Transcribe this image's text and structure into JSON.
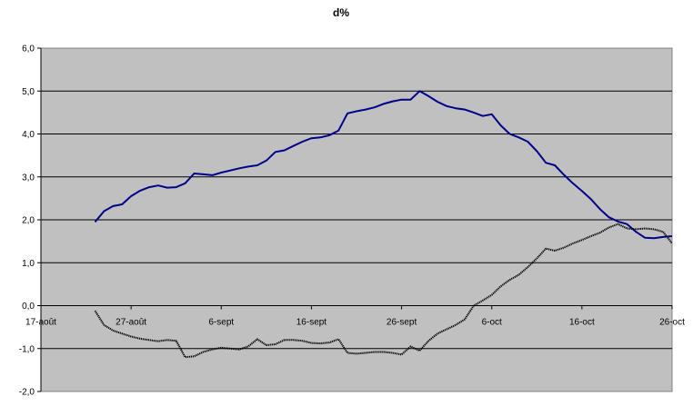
{
  "chart_data": {
    "type": "line",
    "title": "d%",
    "xlabel": "",
    "ylabel": "",
    "x_tick_labels": [
      "17-août",
      "27-août",
      "6-sept",
      "16-sept",
      "26-sept",
      "6-oct",
      "16-oct",
      "26-oct"
    ],
    "x_range_days": [
      0,
      70
    ],
    "y_tick_labels": [
      "-2,0",
      "-1,0",
      "0,0",
      "1,0",
      "2,0",
      "3,0",
      "4,0",
      "5,0",
      "6,0"
    ],
    "ylim": [
      -2.0,
      6.0
    ],
    "grid": "horizontal",
    "plot_background": "#c0c0c0",
    "legend": "none",
    "series": [
      {
        "color": "#00008b",
        "style": "solid",
        "points": [
          [
            6.0,
            1.95
          ],
          [
            7.0,
            2.2
          ],
          [
            8.0,
            2.32
          ],
          [
            9.0,
            2.36
          ],
          [
            10.0,
            2.55
          ],
          [
            11.0,
            2.68
          ],
          [
            12.0,
            2.76
          ],
          [
            13.0,
            2.8
          ],
          [
            14.0,
            2.75
          ],
          [
            15.0,
            2.76
          ],
          [
            16.0,
            2.85
          ],
          [
            17.0,
            3.08
          ],
          [
            18.0,
            3.06
          ],
          [
            19.0,
            3.04
          ],
          [
            20.0,
            3.1
          ],
          [
            21.0,
            3.15
          ],
          [
            22.0,
            3.2
          ],
          [
            23.0,
            3.24
          ],
          [
            24.0,
            3.27
          ],
          [
            25.0,
            3.38
          ],
          [
            26.0,
            3.58
          ],
          [
            27.0,
            3.62
          ],
          [
            28.0,
            3.72
          ],
          [
            29.0,
            3.82
          ],
          [
            30.0,
            3.9
          ],
          [
            31.0,
            3.92
          ],
          [
            32.0,
            3.97
          ],
          [
            33.0,
            4.08
          ],
          [
            34.0,
            4.48
          ],
          [
            35.0,
            4.53
          ],
          [
            36.0,
            4.57
          ],
          [
            37.0,
            4.62
          ],
          [
            38.0,
            4.7
          ],
          [
            39.0,
            4.76
          ],
          [
            40.0,
            4.8
          ],
          [
            41.0,
            4.8
          ],
          [
            42.0,
            5.0
          ],
          [
            43.0,
            4.88
          ],
          [
            44.0,
            4.75
          ],
          [
            45.0,
            4.65
          ],
          [
            46.0,
            4.6
          ],
          [
            47.0,
            4.57
          ],
          [
            48.0,
            4.5
          ],
          [
            49.0,
            4.42
          ],
          [
            50.0,
            4.46
          ],
          [
            51.0,
            4.2
          ],
          [
            52.0,
            4.0
          ],
          [
            53.0,
            3.92
          ],
          [
            54.0,
            3.82
          ],
          [
            55.0,
            3.6
          ],
          [
            56.0,
            3.33
          ],
          [
            57.0,
            3.27
          ],
          [
            58.0,
            3.05
          ],
          [
            59.0,
            2.85
          ],
          [
            60.0,
            2.67
          ],
          [
            61.0,
            2.48
          ],
          [
            62.0,
            2.25
          ],
          [
            63.0,
            2.06
          ],
          [
            64.0,
            1.96
          ],
          [
            65.0,
            1.9
          ],
          [
            66.0,
            1.72
          ],
          [
            67.0,
            1.58
          ],
          [
            68.0,
            1.57
          ],
          [
            69.0,
            1.6
          ],
          [
            70.0,
            1.62
          ]
        ]
      },
      {
        "color": "#000000",
        "style": "dotted",
        "points": [
          [
            6.0,
            -0.12
          ],
          [
            7.0,
            -0.45
          ],
          [
            8.0,
            -0.58
          ],
          [
            9.0,
            -0.65
          ],
          [
            10.0,
            -0.72
          ],
          [
            11.0,
            -0.77
          ],
          [
            12.0,
            -0.8
          ],
          [
            13.0,
            -0.83
          ],
          [
            14.0,
            -0.8
          ],
          [
            15.0,
            -0.82
          ],
          [
            16.0,
            -1.2
          ],
          [
            17.0,
            -1.18
          ],
          [
            18.0,
            -1.08
          ],
          [
            19.0,
            -1.02
          ],
          [
            20.0,
            -0.98
          ],
          [
            21.0,
            -1.0
          ],
          [
            22.0,
            -1.02
          ],
          [
            23.0,
            -0.95
          ],
          [
            24.0,
            -0.78
          ],
          [
            25.0,
            -0.92
          ],
          [
            26.0,
            -0.9
          ],
          [
            27.0,
            -0.8
          ],
          [
            28.0,
            -0.8
          ],
          [
            29.0,
            -0.82
          ],
          [
            30.0,
            -0.87
          ],
          [
            31.0,
            -0.88
          ],
          [
            32.0,
            -0.86
          ],
          [
            33.0,
            -0.78
          ],
          [
            34.0,
            -1.1
          ],
          [
            35.0,
            -1.12
          ],
          [
            36.0,
            -1.1
          ],
          [
            37.0,
            -1.08
          ],
          [
            38.0,
            -1.08
          ],
          [
            39.0,
            -1.1
          ],
          [
            40.0,
            -1.14
          ],
          [
            41.0,
            -0.95
          ],
          [
            42.0,
            -1.05
          ],
          [
            43.0,
            -0.82
          ],
          [
            44.0,
            -0.65
          ],
          [
            45.0,
            -0.55
          ],
          [
            46.0,
            -0.45
          ],
          [
            47.0,
            -0.32
          ],
          [
            48.0,
            0.0
          ],
          [
            49.0,
            0.12
          ],
          [
            50.0,
            0.25
          ],
          [
            51.0,
            0.45
          ],
          [
            52.0,
            0.6
          ],
          [
            53.0,
            0.72
          ],
          [
            54.0,
            0.9
          ],
          [
            55.0,
            1.1
          ],
          [
            56.0,
            1.33
          ],
          [
            57.0,
            1.28
          ],
          [
            58.0,
            1.35
          ],
          [
            59.0,
            1.45
          ],
          [
            60.0,
            1.53
          ],
          [
            61.0,
            1.62
          ],
          [
            62.0,
            1.7
          ],
          [
            63.0,
            1.82
          ],
          [
            64.0,
            1.9
          ],
          [
            65.0,
            1.8
          ],
          [
            66.0,
            1.78
          ],
          [
            67.0,
            1.8
          ],
          [
            68.0,
            1.78
          ],
          [
            69.0,
            1.72
          ],
          [
            70.0,
            1.45
          ]
        ]
      }
    ]
  }
}
